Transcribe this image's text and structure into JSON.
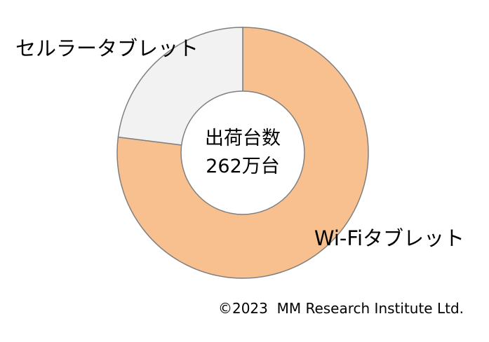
{
  "chart_data": {
    "type": "pie",
    "variant": "donut",
    "categories": [
      "Wi-Fiタブレット",
      "セルラータブレット"
    ],
    "values": [
      77,
      23
    ],
    "unit": "%",
    "colors": [
      "#F9C08F",
      "#F2F2F2"
    ],
    "edge_color": "#7F7F7F",
    "start": "12 o'clock, clockwise",
    "center_label": {
      "line1": "出荷台数",
      "line2": "262万台"
    },
    "legend": "none (direct labels)"
  },
  "footer": {
    "copyright": "©2023  MM Research Institute Ltd."
  }
}
